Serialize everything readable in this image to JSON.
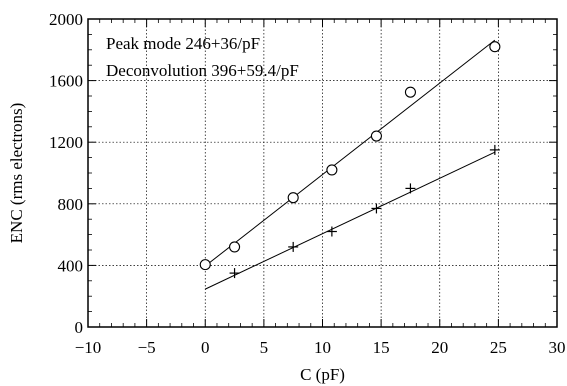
{
  "chart_data": {
    "type": "scatter",
    "xlabel": "C (pF)",
    "ylabel": "ENC (rms electrons)",
    "xlim": [
      -10,
      30
    ],
    "ylim": [
      0,
      2000
    ],
    "x_ticks": [
      "−10",
      "−5",
      "0",
      "5",
      "10",
      "15",
      "20",
      "25",
      "30"
    ],
    "y_ticks": [
      "0",
      "400",
      "800",
      "1200",
      "1600",
      "2000"
    ],
    "grid": true,
    "legend": [
      "Peak mode 246+36/pF",
      "Deconvolution 396+59.4/pF"
    ],
    "series": [
      {
        "marker": "circle",
        "points": [
          [
            0,
            405
          ],
          [
            2.5,
            520
          ],
          [
            7.5,
            840
          ],
          [
            10.8,
            1020
          ],
          [
            14.6,
            1240
          ],
          [
            17.5,
            1525
          ],
          [
            24.7,
            1820
          ]
        ],
        "fit": [
          [
            0,
            396
          ],
          [
            24.7,
            1863
          ]
        ]
      },
      {
        "marker": "plus",
        "points": [
          [
            2.5,
            350
          ],
          [
            7.5,
            520
          ],
          [
            10.8,
            620
          ],
          [
            14.6,
            770
          ],
          [
            17.5,
            900
          ],
          [
            24.7,
            1150
          ]
        ],
        "fit": [
          [
            0,
            246
          ],
          [
            24.7,
            1135
          ]
        ]
      }
    ]
  }
}
